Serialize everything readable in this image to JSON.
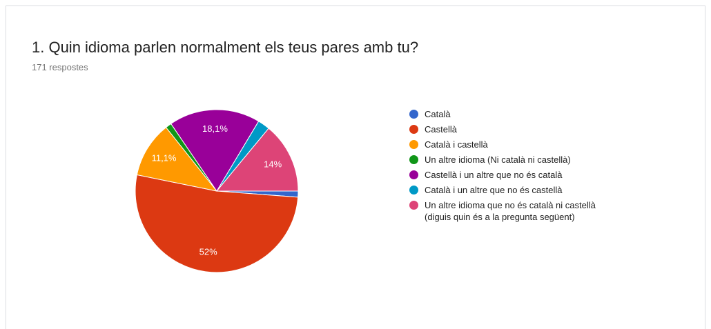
{
  "chart_data": {
    "type": "pie",
    "title": "1. Quin idioma parlen normalment els teus pares amb tu?",
    "subtitle": "171 respostes",
    "categories": [
      "Català",
      "Castellà",
      "Català i castellà",
      "Un altre idioma (Ni català ni castellà)",
      "Castellà i un altre que no és català",
      "Català i un altre que no és castellà",
      "Un altre idioma que no és català ni castellà (diguis quin és a la pregunta següent)"
    ],
    "values": [
      1.2,
      52,
      11.1,
      1.2,
      18.1,
      2.4,
      14
    ],
    "value_labels": [
      null,
      "52%",
      "11,1%",
      null,
      "18,1%",
      null,
      "14%"
    ],
    "colors": [
      "#3366cc",
      "#dc3912",
      "#ff9900",
      "#109618",
      "#990099",
      "#0099c6",
      "#dd4477"
    ],
    "legend": "right"
  }
}
